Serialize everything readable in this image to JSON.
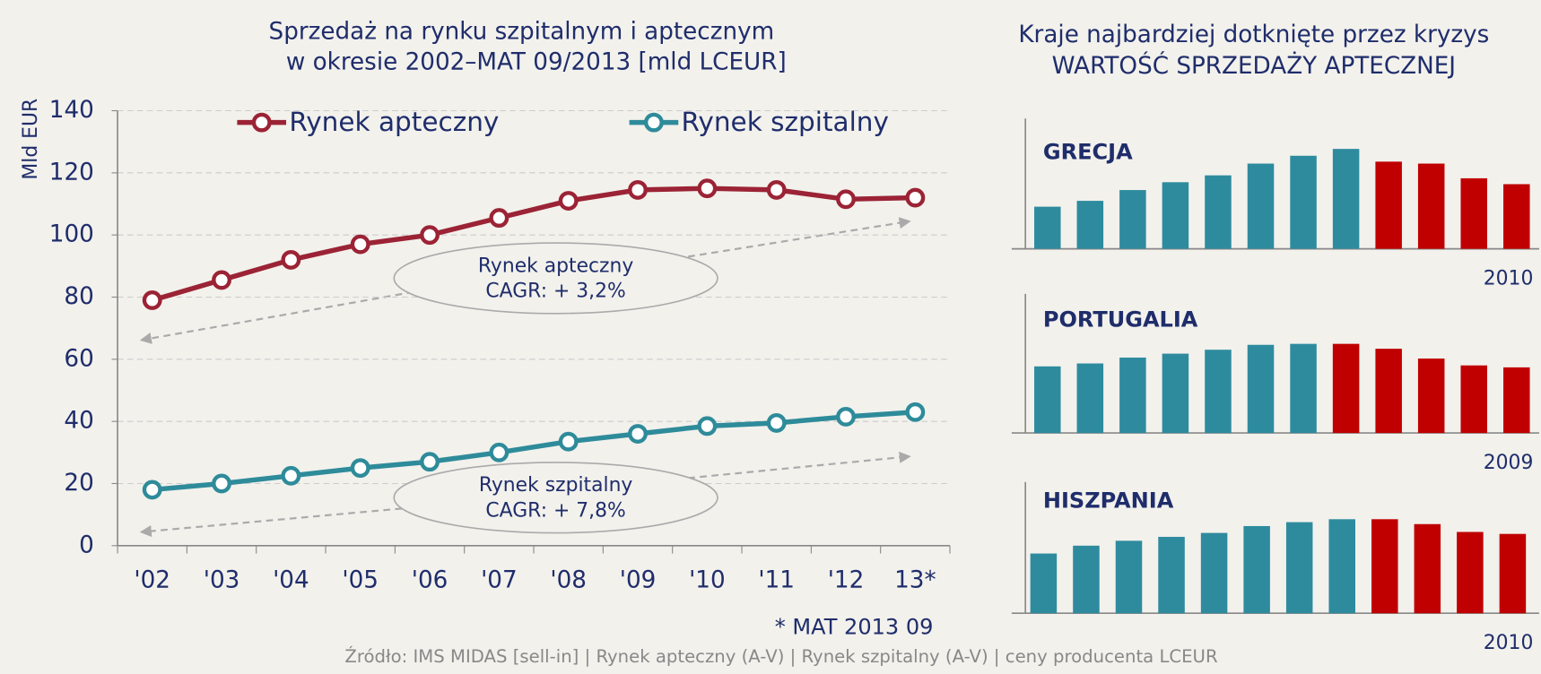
{
  "panel_title": [
    "Kraje najbardziej dotknięte przez kryzys",
    "WARTOŚĆ SPRZEDAŻY APTECZNEJ"
  ],
  "source": "Źródło: IMS MIDAS [sell-in] | Rynek apteczny (A-V) | Rynek szpitalny (A-V) | ceny producenta LCEUR",
  "chart_data": [
    {
      "type": "line",
      "title": [
        "Sprzedaż na rynku szpitalnym i aptecznym",
        "w okresie 2002–MAT 09/2013 [mld LCEUR]"
      ],
      "ylabel": "Mld EUR",
      "categories": [
        "'02",
        "'03",
        "'04",
        "'05",
        "'06",
        "'07",
        "'08",
        "'09",
        "'10",
        "'11",
        "'12",
        "13*"
      ],
      "series": [
        {
          "name": "Rynek apteczny",
          "color": "#9b2335",
          "values": [
            79,
            85.5,
            92,
            97,
            100,
            105.5,
            111,
            114.5,
            115,
            114.5,
            111.5,
            112
          ]
        },
        {
          "name": "Rynek szpitalny",
          "color": "#2e8b9a",
          "values": [
            18,
            20,
            22.5,
            25,
            27,
            30,
            33.5,
            36,
            38.5,
            39.5,
            41.5,
            43
          ]
        }
      ],
      "ylim": [
        0,
        140
      ],
      "yticks": [
        0,
        20,
        40,
        60,
        80,
        100,
        120,
        140
      ],
      "grid": true,
      "annotations": [
        {
          "lines": [
            "Rynek apteczny",
            "CAGR: + 3,2%"
          ]
        },
        {
          "lines": [
            "Rynek szpitalny",
            "CAGR: + 7,8%"
          ]
        }
      ],
      "footnote": "* MAT 2013 09"
    },
    {
      "type": "bar",
      "title": "GRECJA",
      "note": "2010",
      "values": [
        43,
        49,
        60,
        68,
        75,
        87,
        95,
        102,
        89,
        87,
        72,
        66
      ],
      "colors": [
        "#2e8b9e",
        "#2e8b9e",
        "#2e8b9e",
        "#2e8b9e",
        "#2e8b9e",
        "#2e8b9e",
        "#2e8b9e",
        "#2e8b9e",
        "#c00000",
        "#c00000",
        "#c00000",
        "#c00000"
      ]
    },
    {
      "type": "bar",
      "title": "PORTUGALIA",
      "note": "2009",
      "values": [
        68,
        71,
        77,
        81,
        85,
        90,
        91,
        91,
        86,
        76,
        69,
        67
      ],
      "colors": [
        "#2e8b9e",
        "#2e8b9e",
        "#2e8b9e",
        "#2e8b9e",
        "#2e8b9e",
        "#2e8b9e",
        "#2e8b9e",
        "#c00000",
        "#c00000",
        "#c00000",
        "#c00000",
        "#c00000"
      ]
    },
    {
      "type": "bar",
      "title": "HISZPANIA",
      "note": "2010",
      "values": [
        61,
        69,
        74,
        78,
        82,
        89,
        93,
        96,
        96,
        91,
        83,
        81
      ],
      "colors": [
        "#2e8b9e",
        "#2e8b9e",
        "#2e8b9e",
        "#2e8b9e",
        "#2e8b9e",
        "#2e8b9e",
        "#2e8b9e",
        "#2e8b9e",
        "#c00000",
        "#c00000",
        "#c00000",
        "#c00000"
      ]
    }
  ]
}
